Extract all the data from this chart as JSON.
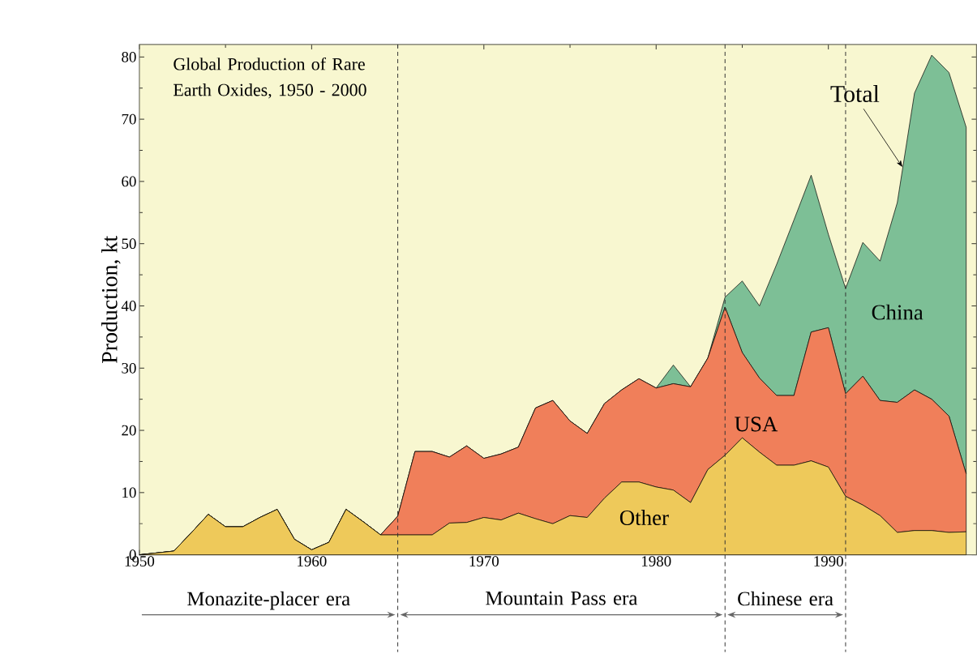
{
  "chart_data": {
    "type": "area",
    "stacked": true,
    "title": "Global Production of Rare Earth Oxides, 1950 - 2000",
    "ylabel": "Production, kt",
    "x": [
      1950,
      1951,
      1952,
      1953,
      1954,
      1955,
      1956,
      1957,
      1958,
      1959,
      1960,
      1961,
      1962,
      1963,
      1964,
      1965,
      1966,
      1967,
      1968,
      1969,
      1970,
      1971,
      1972,
      1973,
      1974,
      1975,
      1976,
      1977,
      1978,
      1979,
      1980,
      1981,
      1982,
      1983,
      1984,
      1985,
      1986,
      1987,
      1988,
      1989,
      1990,
      1991,
      1992,
      1993,
      1994,
      1995,
      1996,
      1997,
      1998
    ],
    "series": [
      {
        "name": "Other",
        "color": "#eec95a",
        "values": [
          0,
          0.3,
          0.6,
          3.5,
          6.5,
          4.5,
          4.5,
          6,
          7.3,
          2.5,
          0.8,
          2,
          7.3,
          5.3,
          3.2,
          3.2,
          3.2,
          3.2,
          5.1,
          5.2,
          6.0,
          5.6,
          6.7,
          5.8,
          5.0,
          6.3,
          6.0,
          9.1,
          11.7,
          11.7,
          10.9,
          10.4,
          8.4,
          13.7,
          16.0,
          18.8,
          16.5,
          14.4,
          14.4,
          15.1,
          14.1,
          9.4,
          8.0,
          6.3,
          3.6,
          3.9,
          3.9,
          3.6,
          3.7
        ]
      },
      {
        "name": "USA",
        "color": "#f07f5a",
        "values": [
          0,
          0,
          0,
          0,
          0,
          0,
          0,
          0,
          0,
          0,
          0,
          0,
          0,
          0,
          0,
          3.0,
          13.4,
          13.4,
          10.6,
          12.3,
          9.5,
          10.6,
          10.6,
          17.8,
          19.8,
          15.2,
          13.5,
          15.2,
          14.8,
          16.6,
          15.9,
          17.1,
          18.6,
          17.9,
          23.8,
          13.7,
          11.9,
          11.2,
          11.2,
          20.7,
          22.4,
          16.5,
          20.7,
          18.5,
          20.9,
          22.6,
          21.1,
          18.7,
          9.3
        ]
      },
      {
        "name": "China",
        "color": "#7dbf96",
        "values": [
          0,
          0,
          0,
          0,
          0,
          0,
          0,
          0,
          0,
          0,
          0,
          0,
          0,
          0,
          0,
          0,
          0,
          0,
          0,
          0,
          0,
          0,
          0,
          0,
          0,
          0,
          0,
          0,
          0,
          0,
          0,
          3.0,
          0,
          0,
          1.6,
          11.5,
          11.6,
          21.1,
          28.2,
          25.2,
          15.0,
          16.9,
          21.5,
          22.4,
          32.1,
          47.7,
          55.3,
          55.2,
          55.7
        ]
      }
    ],
    "xlim": [
      1950,
      1998.6
    ],
    "xticks": [
      1950,
      1960,
      1970,
      1980,
      1990
    ],
    "ylim": [
      0,
      82
    ],
    "yticks": [
      0,
      10,
      20,
      30,
      40,
      50,
      60,
      70,
      80
    ],
    "ref_lines": [
      {
        "axis": "x",
        "value": 1965,
        "line_style": "dashed"
      },
      {
        "axis": "x",
        "value": 1984,
        "line_style": "dashed"
      },
      {
        "axis": "x",
        "value": 1991,
        "line_style": "dashed"
      }
    ],
    "annotations": [
      {
        "text": "Total",
        "x": 1994.3,
        "y": 62.3
      },
      "Monazite-placer era",
      "Mountain Pass era",
      "Chinese era"
    ]
  }
}
